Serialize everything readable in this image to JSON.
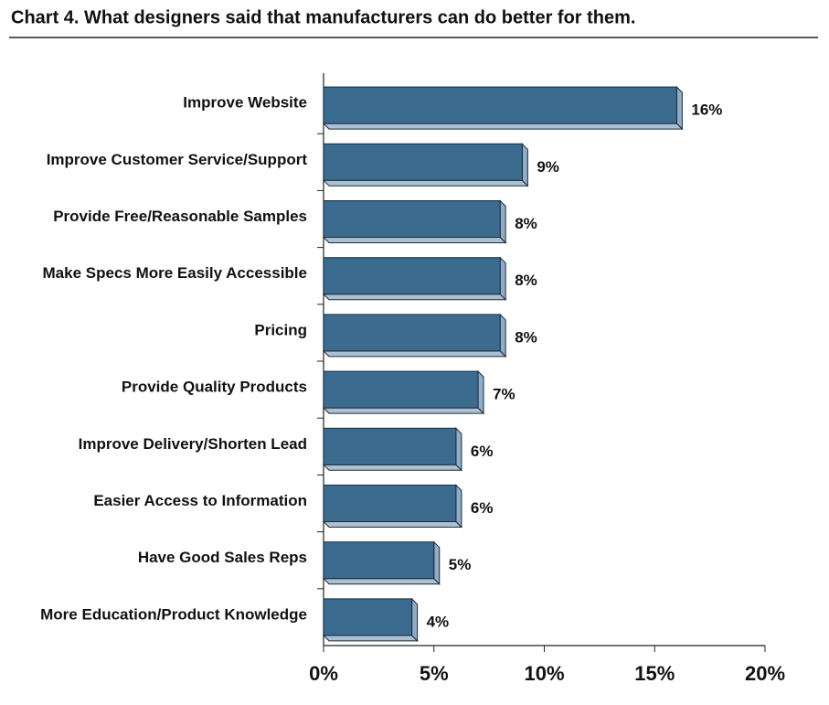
{
  "chart_data": {
    "type": "bar",
    "orientation": "horizontal",
    "title": "Chart 4. What designers said that manufacturers can do better for them.",
    "categories": [
      "Improve Website",
      "Improve Customer Service/Support",
      "Provide Free/Reasonable Samples",
      "Make Specs More Easily Accessible",
      "Pricing",
      "Provide Quality Products",
      "Improve Delivery/Shorten Lead",
      "Easier Access to Information",
      "Have Good Sales Reps",
      "More Education/Product Knowledge"
    ],
    "values": [
      16,
      9,
      8,
      8,
      8,
      7,
      6,
      6,
      5,
      4
    ],
    "value_labels": [
      "16%",
      "9%",
      "8%",
      "8%",
      "8%",
      "7%",
      "6%",
      "6%",
      "5%",
      "4%"
    ],
    "color": "#3b6b8e",
    "xlim": [
      0,
      20
    ],
    "xticks": [
      {
        "value": 0,
        "label": "0%"
      },
      {
        "value": 5,
        "label": "5%"
      },
      {
        "value": 10,
        "label": "10%"
      },
      {
        "value": 15,
        "label": "15%"
      },
      {
        "value": 20,
        "label": "20%"
      }
    ],
    "grid": false
  }
}
